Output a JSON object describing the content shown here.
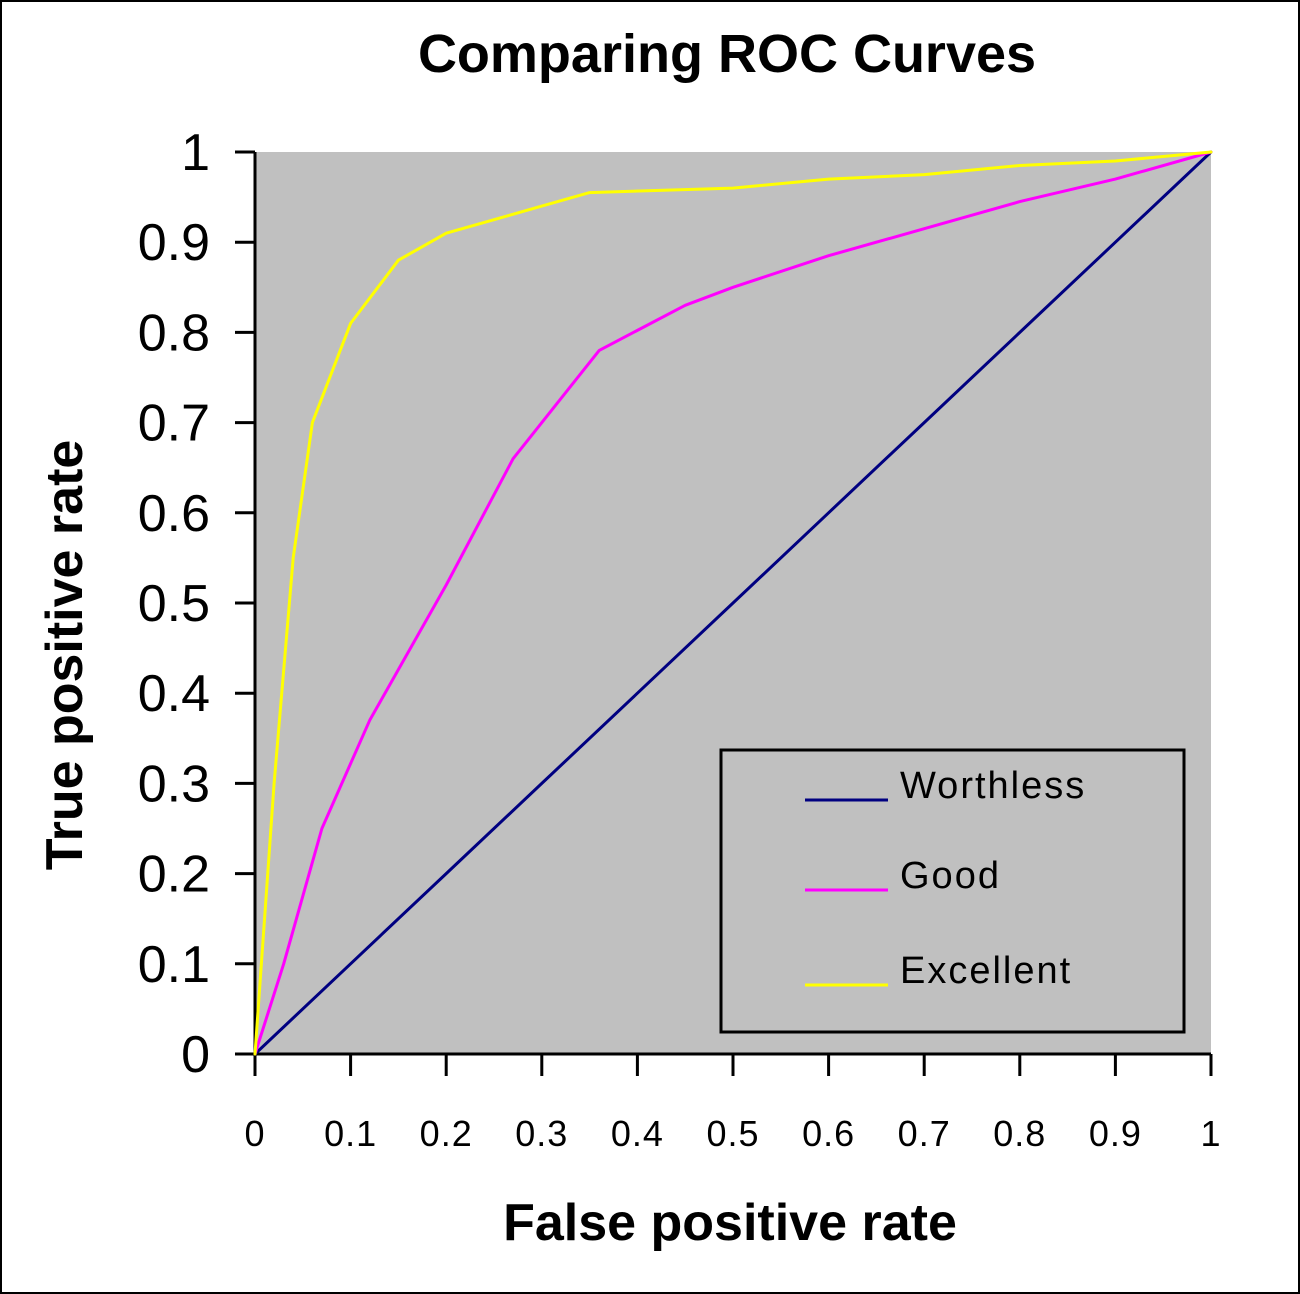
{
  "chart_data": {
    "type": "line",
    "title": "Comparing ROC Curves",
    "xlabel": "False positive rate",
    "ylabel": "True positive rate",
    "xlim": [
      0,
      1
    ],
    "ylim": [
      0,
      1
    ],
    "x_ticks": [
      "0",
      "0.1",
      "0.2",
      "0.3",
      "0.4",
      "0.5",
      "0.6",
      "0.7",
      "0.8",
      "0.9",
      "1"
    ],
    "y_ticks": [
      "0",
      "0.1",
      "0.2",
      "0.3",
      "0.4",
      "0.5",
      "0.6",
      "0.7",
      "0.8",
      "0.9",
      "1"
    ],
    "grid": false,
    "legend": "lower-right",
    "plot_background": "#c0c0c0",
    "series": [
      {
        "name": "Worthless",
        "color": "#000080",
        "points": [
          [
            0,
            0
          ],
          [
            0.1,
            0.1
          ],
          [
            0.2,
            0.2
          ],
          [
            0.3,
            0.3
          ],
          [
            0.4,
            0.4
          ],
          [
            0.5,
            0.5
          ],
          [
            0.6,
            0.6
          ],
          [
            0.7,
            0.7
          ],
          [
            0.8,
            0.8
          ],
          [
            0.9,
            0.9
          ],
          [
            1,
            1
          ]
        ]
      },
      {
        "name": "Good",
        "color": "#ff00ff",
        "points": [
          [
            0,
            0
          ],
          [
            0.03,
            0.1
          ],
          [
            0.07,
            0.25
          ],
          [
            0.12,
            0.37
          ],
          [
            0.2,
            0.52
          ],
          [
            0.27,
            0.66
          ],
          [
            0.36,
            0.78
          ],
          [
            0.45,
            0.83
          ],
          [
            0.5,
            0.85
          ],
          [
            0.6,
            0.885
          ],
          [
            0.7,
            0.915
          ],
          [
            0.8,
            0.945
          ],
          [
            0.9,
            0.97
          ],
          [
            1,
            1
          ]
        ]
      },
      {
        "name": "Excellent",
        "color": "#ffff00",
        "points": [
          [
            0,
            0
          ],
          [
            0.02,
            0.3
          ],
          [
            0.04,
            0.55
          ],
          [
            0.06,
            0.7
          ],
          [
            0.1,
            0.81
          ],
          [
            0.15,
            0.88
          ],
          [
            0.2,
            0.91
          ],
          [
            0.3,
            0.94
          ],
          [
            0.35,
            0.955
          ],
          [
            0.5,
            0.96
          ],
          [
            0.6,
            0.97
          ],
          [
            0.7,
            0.975
          ],
          [
            0.8,
            0.985
          ],
          [
            0.9,
            0.99
          ],
          [
            1,
            1
          ]
        ]
      }
    ]
  }
}
